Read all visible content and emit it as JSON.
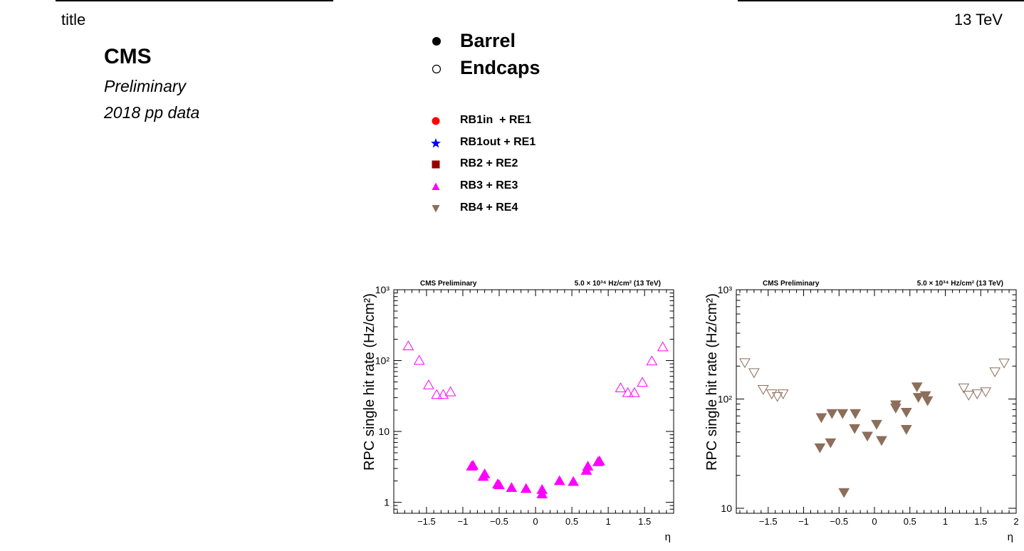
{
  "header": {
    "title": "title",
    "energy": "13 TeV",
    "experiment": "CMS",
    "status": "Preliminary",
    "dataset": "2018 pp data"
  },
  "legend": {
    "regions": [
      {
        "label": "Barrel",
        "marker": "filled-circle"
      },
      {
        "label": "Endcaps",
        "marker": "open-circle"
      }
    ],
    "stations": [
      {
        "label": "RB1in  + RE1",
        "marker": "circle",
        "color": "#ff0000"
      },
      {
        "label": "RB1out + RE1",
        "marker": "star",
        "color": "#0000ff"
      },
      {
        "label": "RB2 + RE2",
        "marker": "square",
        "color": "#990000"
      },
      {
        "label": "RB3 + RE3",
        "marker": "triangle-up",
        "color": "#ff00ff"
      },
      {
        "label": "RB4 + RE4",
        "marker": "triangle-down",
        "color": "#8c6e5a"
      }
    ]
  },
  "chart_data": [
    {
      "type": "scatter",
      "name": "RB3 + RE3",
      "header_left": "CMS Preliminary",
      "header_right": "5.0 × 10³⁴ Hz/cm² (13 TeV)",
      "xlabel": "η",
      "ylabel": "RPC single hit rate (Hz/cm²)",
      "xlim": [
        -1.95,
        1.9
      ],
      "ylim": [
        0.7,
        1000
      ],
      "yscale": "log",
      "xticks": [
        -1.5,
        -1,
        -0.5,
        0,
        0.5,
        1,
        1.5
      ],
      "xtick_labels": [
        "−1.5",
        "−1",
        "−0.5",
        "0",
        "0.5",
        "1",
        "1.5"
      ],
      "yticks": [
        1,
        10,
        100,
        1000
      ],
      "ytick_labels": [
        "1",
        "10",
        "10²",
        "10³"
      ],
      "marker": "triangle-up",
      "color": "#ff00ff",
      "series": [
        {
          "region": "Barrel",
          "filled": true,
          "x": [
            -0.88,
            -0.86,
            -0.72,
            -0.7,
            -0.52,
            -0.5,
            -0.33,
            -0.13,
            0.09,
            0.09,
            0.33,
            0.52,
            0.7,
            0.72,
            0.86,
            0.88
          ],
          "y": [
            3.2,
            3.3,
            2.3,
            2.5,
            1.8,
            1.75,
            1.6,
            1.55,
            1.3,
            1.5,
            2.0,
            1.95,
            2.8,
            3.2,
            3.7,
            3.8
          ]
        },
        {
          "region": "Endcaps",
          "filled": false,
          "x": [
            -1.75,
            -1.6,
            -1.47,
            -1.36,
            -1.27,
            -1.17,
            1.17,
            1.27,
            1.36,
            1.47,
            1.6,
            1.75
          ],
          "y": [
            160,
            100,
            45,
            33,
            33,
            36,
            41,
            35,
            35,
            49,
            98,
            155
          ]
        }
      ]
    },
    {
      "type": "scatter",
      "name": "RB4 + RE4",
      "header_left": "CMS Preliminary",
      "header_right": "5.0 × 10³⁴ Hz/cm² (13 TeV)",
      "xlabel": "η",
      "ylabel": "RPC single hit rate (Hz/cm²)",
      "xlim": [
        -1.95,
        2.0
      ],
      "ylim": [
        9,
        1000
      ],
      "yscale": "log",
      "xticks": [
        -1.5,
        -1,
        -0.5,
        0,
        0.5,
        1,
        1.5,
        2
      ],
      "xtick_labels": [
        "−1.5",
        "−1",
        "−0.5",
        "0",
        "0.5",
        "1",
        "1.5",
        "2"
      ],
      "yticks": [
        10,
        100,
        1000
      ],
      "ytick_labels": [
        "10",
        "10²",
        "10³"
      ],
      "marker": "triangle-down",
      "color": "#8c6e5a",
      "series": [
        {
          "region": "Barrel",
          "filled": true,
          "x": [
            -0.77,
            -0.75,
            -0.62,
            -0.6,
            -0.45,
            -0.43,
            -0.28,
            -0.27,
            -0.1,
            0.03,
            0.1,
            0.3,
            0.3,
            0.45,
            0.45,
            0.6,
            0.62,
            0.72,
            0.75
          ],
          "y": [
            36,
            68,
            40,
            74,
            74,
            14,
            54,
            74,
            46,
            59,
            42,
            89,
            83,
            53,
            76,
            130,
            104,
            108,
            97
          ]
        },
        {
          "region": "Endcaps",
          "filled": false,
          "x": [
            -1.83,
            -1.7,
            -1.57,
            -1.45,
            -1.37,
            -1.29,
            1.26,
            1.33,
            1.45,
            1.57,
            1.7,
            1.83
          ],
          "y": [
            216,
            175,
            123,
            112,
            106,
            112,
            127,
            109,
            112,
            117,
            178,
            215
          ]
        }
      ]
    }
  ]
}
